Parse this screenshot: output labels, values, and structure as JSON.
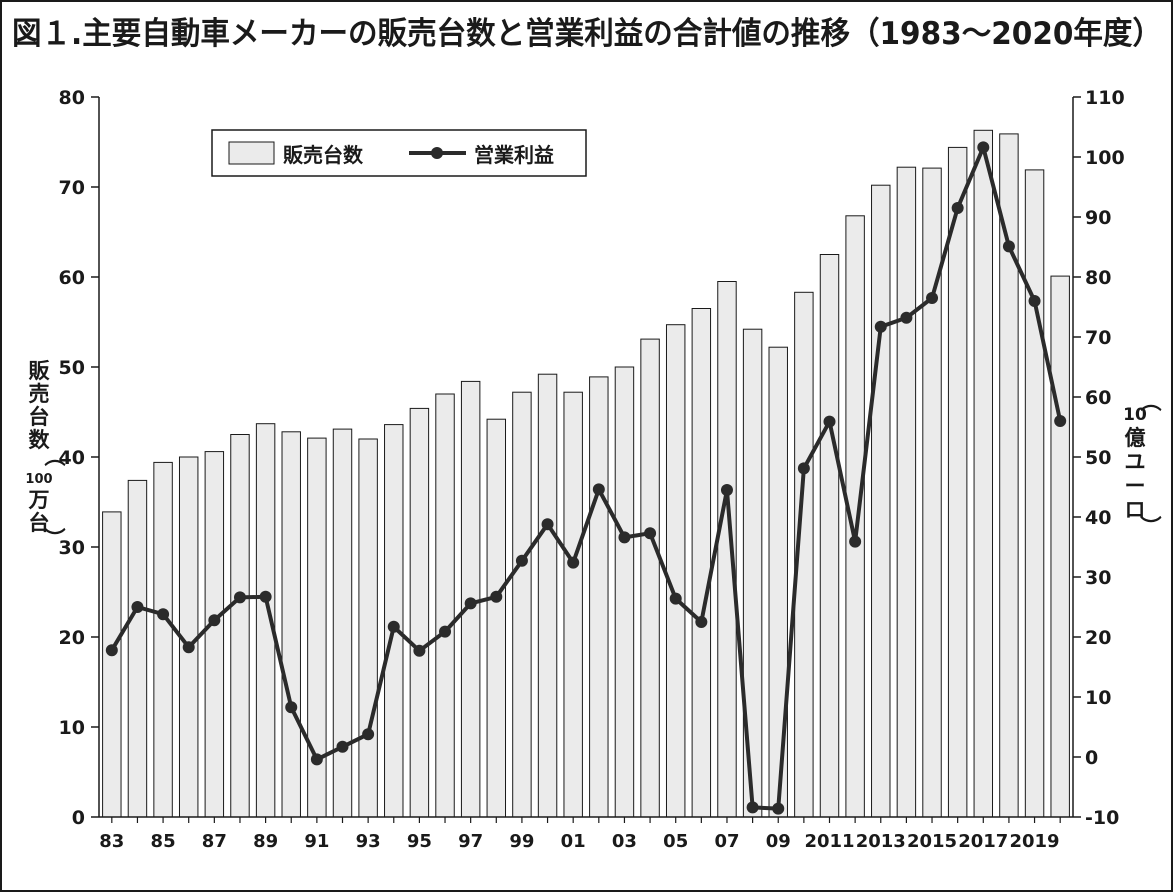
{
  "title": "図１.主要自動車メーカーの販売台数と営業利益の合計値の推移（1983～2020年度）",
  "legend": {
    "bar_label": "販売台数",
    "line_label": "営業利益"
  },
  "left_axis": {
    "label_main": "販売台数",
    "label_unit_open": "（",
    "label_unit_num": "100",
    "label_unit_text": "万台",
    "label_unit_close": "）"
  },
  "right_axis": {
    "label_unit_open": "（",
    "label_unit_num": "10",
    "label_unit_text": "億ユーロ",
    "label_unit_close": "）"
  },
  "colors": {
    "bar_fill": "#ebebeb",
    "bar_stroke": "#1a1a1a",
    "line": "#2b2b2b",
    "marker": "#2b2b2b",
    "text": "#1a1a1a",
    "frame": "#1a1a1a"
  },
  "chart_data": {
    "type": "bar",
    "years": [
      1983,
      1984,
      1985,
      1986,
      1987,
      1988,
      1989,
      1990,
      1991,
      1992,
      1993,
      1994,
      1995,
      1996,
      1997,
      1998,
      1999,
      2000,
      2001,
      2002,
      2003,
      2004,
      2005,
      2006,
      2007,
      2008,
      2009,
      2010,
      2011,
      2012,
      2013,
      2014,
      2015,
      2016,
      2017,
      2018,
      2019,
      2020
    ],
    "x_tick_labels": [
      "83",
      "85",
      "87",
      "89",
      "91",
      "93",
      "95",
      "97",
      "99",
      "01",
      "03",
      "05",
      "07",
      "09",
      "2011",
      "2013",
      "2015",
      "2017",
      "2019"
    ],
    "x_tick_years": [
      1983,
      1985,
      1987,
      1989,
      1991,
      1993,
      1995,
      1997,
      1999,
      2001,
      2003,
      2005,
      2007,
      2009,
      2011,
      2013,
      2015,
      2017,
      2019
    ],
    "series": [
      {
        "name": "販売台数",
        "type": "bar",
        "axis": "left",
        "values": [
          33.9,
          37.4,
          39.4,
          40.0,
          40.6,
          42.5,
          43.7,
          42.8,
          42.1,
          43.1,
          42.0,
          43.6,
          45.4,
          47.0,
          48.4,
          44.2,
          47.2,
          49.2,
          47.2,
          48.9,
          50.0,
          53.1,
          54.7,
          56.5,
          59.5,
          54.2,
          52.2,
          58.3,
          62.5,
          66.8,
          70.2,
          72.2,
          72.1,
          74.4,
          76.3,
          75.9,
          71.9,
          60.1
        ]
      },
      {
        "name": "営業利益",
        "type": "line",
        "axis": "right",
        "values": [
          17.8,
          25.0,
          23.8,
          18.3,
          22.8,
          26.6,
          26.7,
          8.3,
          -0.4,
          1.7,
          3.8,
          21.7,
          17.7,
          20.9,
          25.6,
          26.7,
          32.7,
          38.8,
          32.4,
          44.6,
          36.6,
          37.3,
          26.4,
          22.5,
          44.5,
          -8.4,
          -8.6,
          48.1,
          55.9,
          35.9,
          71.7,
          73.2,
          76.5,
          91.5,
          101.6,
          85.1,
          76.0,
          56.0
        ]
      }
    ],
    "left_axis": {
      "ylim": [
        0,
        80
      ],
      "ticks": [
        0,
        10,
        20,
        30,
        40,
        50,
        60,
        70,
        80
      ]
    },
    "right_axis": {
      "ylim": [
        -10,
        110
      ],
      "ticks": [
        -10,
        0,
        10,
        20,
        30,
        40,
        50,
        60,
        70,
        80,
        90,
        100,
        110
      ]
    },
    "legend_position": "top-left",
    "grid": false
  }
}
